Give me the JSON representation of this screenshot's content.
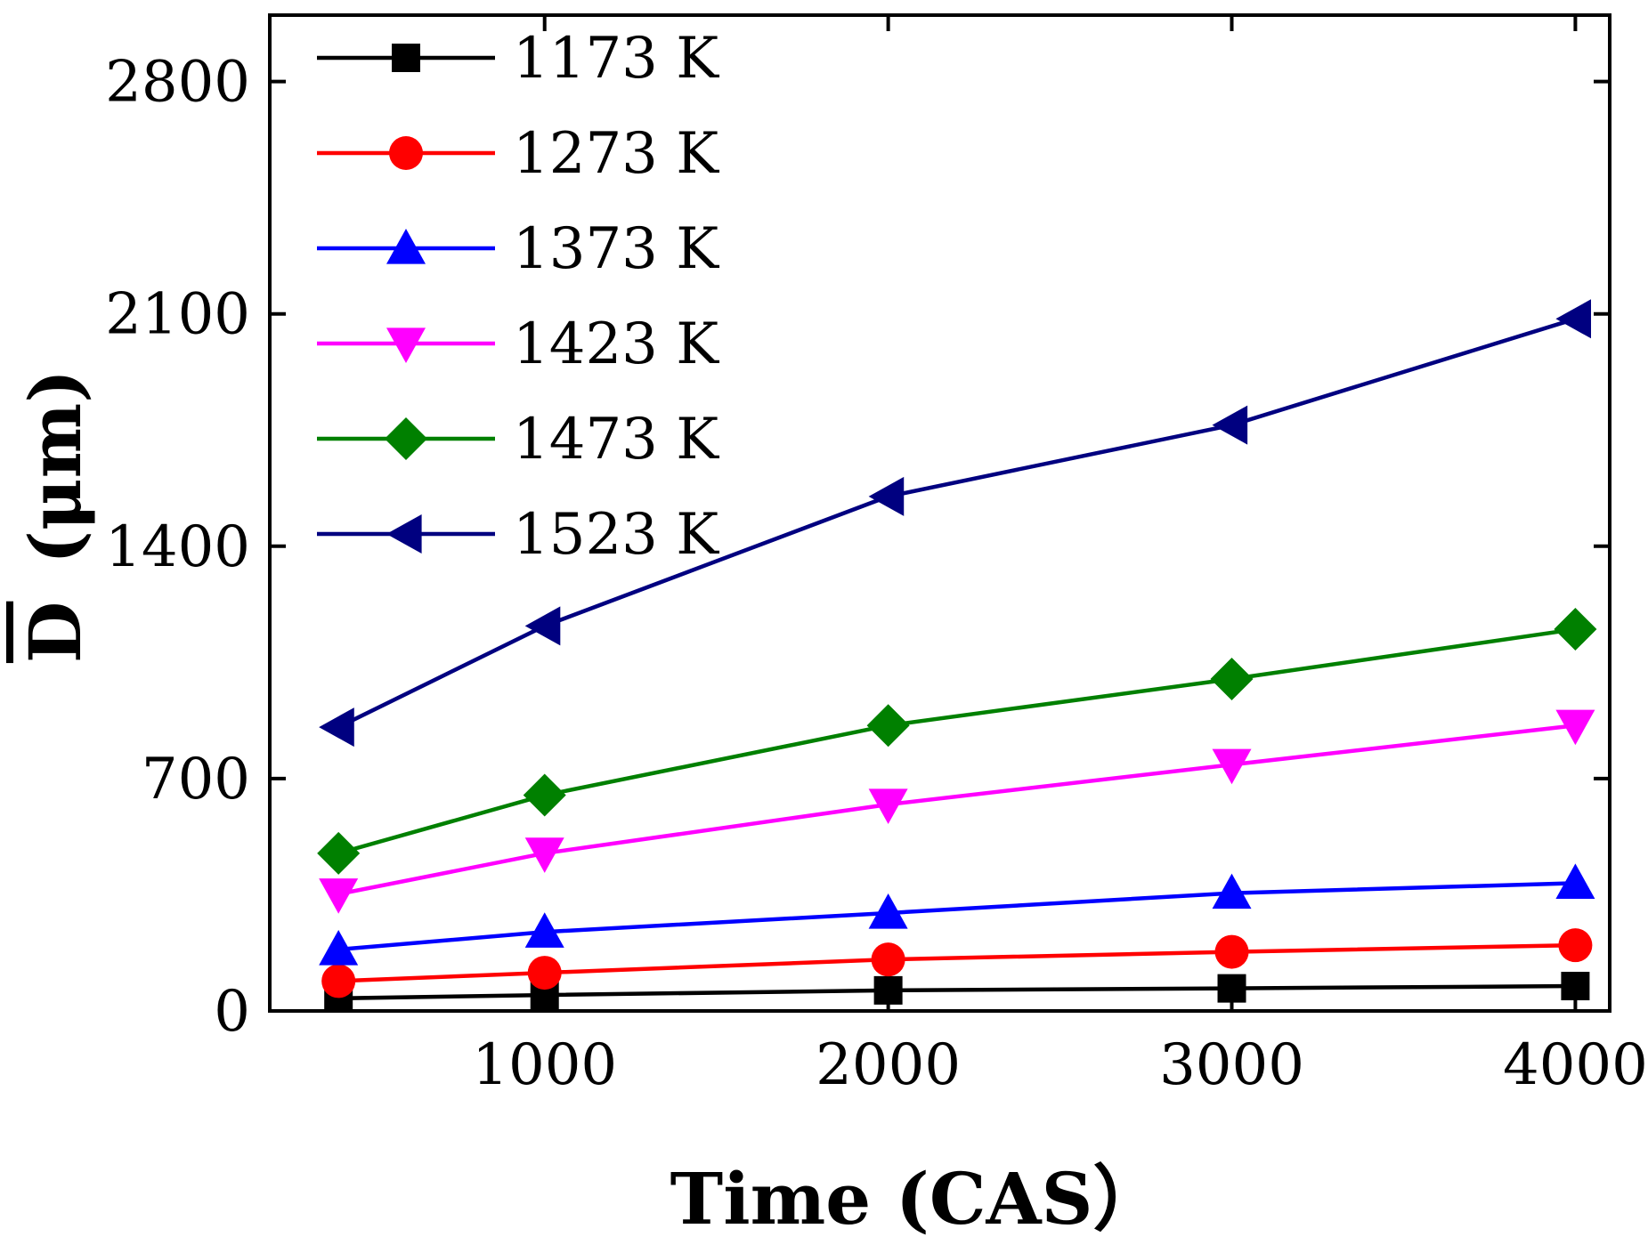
{
  "chart_data": {
    "type": "line",
    "title": "",
    "xlabel": "Time (CAS）",
    "ylabel": "D (μm)",
    "ylabel_overline": "D",
    "ylabel_unit": "(μm)",
    "xlim": [
      200,
      4100
    ],
    "ylim": [
      0,
      3000
    ],
    "xticks": [
      1000,
      2000,
      3000,
      4000
    ],
    "yticks": [
      0,
      700,
      1400,
      2100,
      2800
    ],
    "x": [
      400,
      1000,
      2000,
      3000,
      4000
    ],
    "legend_position": "top-left",
    "series": [
      {
        "name": "1173 K",
        "color": "#000000",
        "marker": "square",
        "values": [
          38,
          48,
          62,
          68,
          75
        ]
      },
      {
        "name": "1273 K",
        "color": "#ff0000",
        "marker": "circle",
        "values": [
          90,
          115,
          155,
          178,
          198
        ]
      },
      {
        "name": "1373 K",
        "color": "#0000ff",
        "marker": "triangle-up",
        "values": [
          185,
          238,
          295,
          355,
          385
        ]
      },
      {
        "name": "1423 K",
        "color": "#ff00ff",
        "marker": "triangle-down",
        "values": [
          352,
          475,
          622,
          742,
          860
        ]
      },
      {
        "name": "1473 K",
        "color": "#008000",
        "marker": "diamond",
        "values": [
          475,
          650,
          860,
          1000,
          1150
        ]
      },
      {
        "name": "1523 K",
        "color": "#000080",
        "marker": "triangle-left",
        "values": [
          855,
          1160,
          1550,
          1765,
          2085
        ]
      }
    ]
  }
}
